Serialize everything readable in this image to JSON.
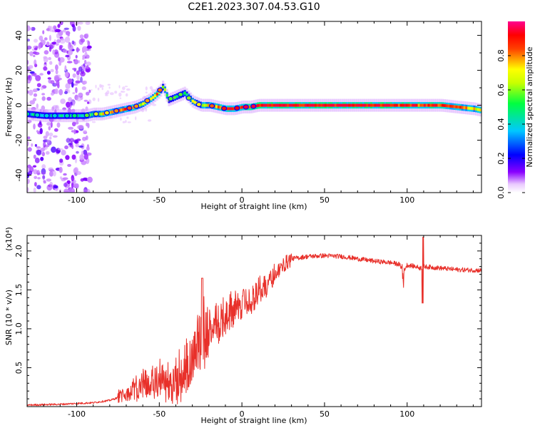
{
  "page_title": "C2E1.2023.307.04.53.G10",
  "colors": {
    "line": "#e8302a",
    "axis": "#000000",
    "background": "#ffffff"
  },
  "chart_data": [
    {
      "type": "heatmap",
      "xlabel": "Height of straight line (km)",
      "ylabel": "Frequency (Hz)",
      "xlim": [
        -130,
        145
      ],
      "ylim": [
        -50,
        48
      ],
      "x_ticks": [
        "-100",
        "-50",
        "0",
        "50",
        "100"
      ],
      "x_tick_values": [
        -100,
        -50,
        0,
        50,
        100
      ],
      "y_ticks": [
        "-40",
        "-20",
        "0",
        "20",
        "40"
      ],
      "y_tick_values": [
        -40,
        -20,
        0,
        20,
        40
      ],
      "colorbar": {
        "label": "Normalized spectral amplitude",
        "range": [
          0,
          1
        ],
        "ticks": [
          "0.0",
          "0.2",
          "0.4",
          "0.6",
          "0.8"
        ],
        "tick_values": [
          0.0,
          0.2,
          0.4,
          0.6,
          0.8
        ],
        "colormap": "rainbow (white to purple to blue to cyan to green to yellow to red to magenta)"
      },
      "track": {
        "x": [
          -130,
          -120,
          -110,
          -100,
          -95,
          -90,
          -85,
          -80,
          -75,
          -70,
          -65,
          -60,
          -55,
          -50,
          -48,
          -45,
          -40,
          -35,
          -30,
          -25,
          -20,
          -15,
          -10,
          -5,
          0,
          5,
          10,
          20,
          40,
          60,
          80,
          100,
          120,
          140,
          145
        ],
        "freq": [
          -5,
          -6,
          -6,
          -6,
          -6,
          -5,
          -5,
          -4,
          -3,
          -2,
          -1,
          1,
          4,
          8,
          11,
          3,
          5,
          7,
          2,
          0,
          0,
          -1,
          -2,
          -2,
          -1,
          -1,
          0,
          0,
          0,
          0,
          0,
          0,
          0,
          -2,
          -3
        ],
        "amplitude": [
          0.4,
          0.35,
          0.35,
          0.45,
          0.5,
          0.6,
          0.65,
          0.7,
          0.75,
          0.8,
          0.75,
          0.7,
          0.75,
          0.8,
          0.6,
          0.5,
          0.55,
          0.5,
          0.6,
          0.7,
          0.75,
          0.8,
          0.85,
          0.85,
          0.9,
          0.9,
          0.95,
          0.95,
          0.95,
          0.95,
          0.95,
          0.9,
          0.85,
          0.75,
          0.7
        ]
      },
      "noise_region_x": [
        -130,
        -92
      ],
      "grid": false
    },
    {
      "type": "line",
      "xlabel": "Height of straight line (km)",
      "ylabel": "SNR (10 * v/v)",
      "y_scale_label": "(x10⁴)",
      "xlim": [
        -130,
        145
      ],
      "ylim": [
        0,
        2.2
      ],
      "x_ticks": [
        "-100",
        "-50",
        "0",
        "50",
        "100"
      ],
      "x_tick_values": [
        -100,
        -50,
        0,
        50,
        100
      ],
      "y_ticks": [
        "0.5",
        "1.0",
        "1.5",
        "2.0"
      ],
      "y_tick_values": [
        0.5,
        1.0,
        1.5,
        2.0
      ],
      "series": [
        {
          "x": [
            -130,
            -110,
            -90,
            -80,
            -70,
            -60,
            -55,
            -50,
            -45,
            -40,
            -35,
            -30,
            -25,
            -20,
            -15,
            -10,
            -5,
            0,
            5,
            10,
            15,
            20,
            25,
            30,
            40,
            50,
            60,
            70,
            80,
            90,
            95,
            98,
            100,
            105,
            108,
            110,
            115,
            120,
            130,
            145
          ],
          "y": [
            0.02,
            0.03,
            0.05,
            0.08,
            0.15,
            0.25,
            0.3,
            0.35,
            0.25,
            0.3,
            0.4,
            0.6,
            0.8,
            1.0,
            1.05,
            1.15,
            1.2,
            1.3,
            1.35,
            1.45,
            1.55,
            1.7,
            1.82,
            1.9,
            1.93,
            1.94,
            1.93,
            1.9,
            1.87,
            1.85,
            1.83,
            1.75,
            1.82,
            1.8,
            1.78,
            1.8,
            1.79,
            1.78,
            1.76,
            1.75
          ]
        }
      ],
      "grid": false
    }
  ]
}
